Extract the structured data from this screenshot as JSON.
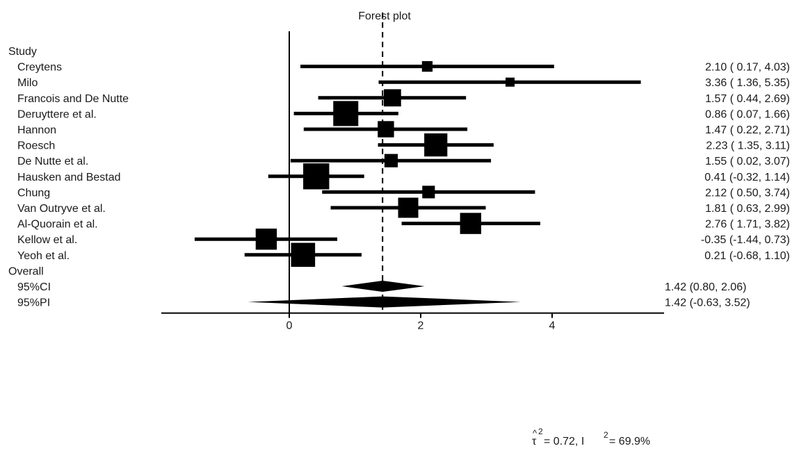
{
  "chart_data": {
    "type": "forest",
    "title": "Forest plot",
    "study_header": "Study",
    "overall_header": "Overall",
    "xlim": [
      -1.8,
      5.6
    ],
    "xticks": [
      0,
      2,
      4
    ],
    "null_line": 0,
    "pooled_estimate": 1.42,
    "studies": [
      {
        "name": "Creytens",
        "est": 2.1,
        "lo": 0.17,
        "hi": 4.03,
        "label": "2.10 ( 0.17, 4.03)",
        "weight": 0.26
      },
      {
        "name": "Milo",
        "est": 3.36,
        "lo": 1.36,
        "hi": 5.35,
        "label": "3.36 ( 1.36, 5.35)",
        "weight": 0.18
      },
      {
        "name": "Francois and De Nutte",
        "est": 1.57,
        "lo": 0.44,
        "hi": 2.69,
        "label": "1.57 ( 0.44, 2.69)",
        "weight": 0.6
      },
      {
        "name": "Deruyttere et al.",
        "est": 0.86,
        "lo": 0.07,
        "hi": 1.66,
        "label": "0.86 ( 0.07, 1.66)",
        "weight": 1.0
      },
      {
        "name": "Hannon",
        "est": 1.47,
        "lo": 0.22,
        "hi": 2.71,
        "label": "1.47 ( 0.22, 2.71)",
        "weight": 0.55
      },
      {
        "name": "Roesch",
        "est": 2.23,
        "lo": 1.35,
        "hi": 3.11,
        "label": "2.23 ( 1.35, 3.11)",
        "weight": 0.9
      },
      {
        "name": "De Nutte et al.",
        "est": 1.55,
        "lo": 0.02,
        "hi": 3.07,
        "label": "1.55 ( 0.02, 3.07)",
        "weight": 0.4
      },
      {
        "name": "Hausken and Bestad",
        "est": 0.41,
        "lo": -0.32,
        "hi": 1.14,
        "label": "0.41 (-0.32, 1.14)",
        "weight": 1.05
      },
      {
        "name": "Chung",
        "est": 2.12,
        "lo": 0.5,
        "hi": 3.74,
        "label": "2.12 ( 0.50, 3.74)",
        "weight": 0.36
      },
      {
        "name": "Van Outryve et al.",
        "est": 1.81,
        "lo": 0.63,
        "hi": 2.99,
        "label": "1.81 ( 0.63, 2.99)",
        "weight": 0.75
      },
      {
        "name": "Al-Quorain et al.",
        "est": 2.76,
        "lo": 1.71,
        "hi": 3.82,
        "label": "2.76 ( 1.71, 3.82)",
        "weight": 0.8
      },
      {
        "name": "Kellow et al.",
        "est": -0.35,
        "lo": -1.44,
        "hi": 0.73,
        "label": "-0.35 (-1.44, 0.73)",
        "weight": 0.8
      },
      {
        "name": "Yeoh et al.",
        "est": 0.21,
        "lo": -0.68,
        "hi": 1.1,
        "label": "0.21 (-0.68, 1.10)",
        "weight": 0.95
      }
    ],
    "overall": [
      {
        "name": "95%CI",
        "est": 1.42,
        "lo": 0.8,
        "hi": 2.06,
        "label": "1.42 (0.80, 2.06)"
      },
      {
        "name": "95%PI",
        "est": 1.42,
        "lo": -0.63,
        "hi": 3.52,
        "label": "1.42 (-0.63, 3.52)"
      }
    ],
    "heterogeneity": {
      "tau2": "0.72",
      "I2": "69.9%"
    }
  }
}
